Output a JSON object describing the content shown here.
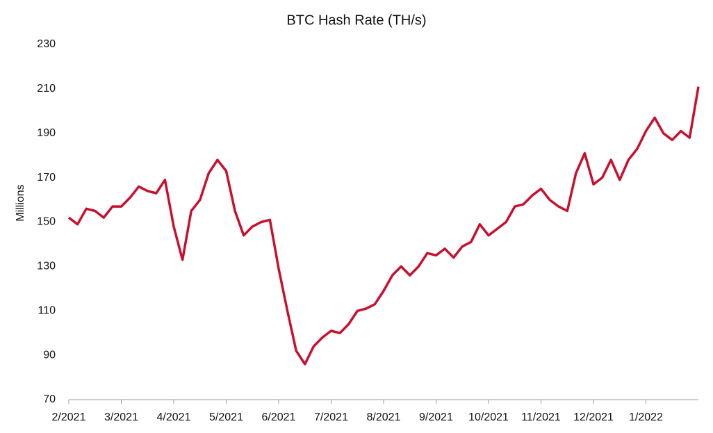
{
  "chart_data": {
    "type": "line",
    "title": "BTC Hash Rate (TH/s)",
    "y_label": "Millions",
    "categories": [
      "2/2021",
      null,
      null,
      null,
      null,
      null,
      "3/2021",
      null,
      null,
      null,
      null,
      null,
      "4/2021",
      null,
      null,
      null,
      null,
      null,
      "5/2021",
      null,
      null,
      null,
      null,
      null,
      "6/2021",
      null,
      null,
      null,
      null,
      null,
      "7/2021",
      null,
      null,
      null,
      null,
      null,
      "8/2021",
      null,
      null,
      null,
      null,
      null,
      "9/2021",
      null,
      null,
      null,
      null,
      null,
      "10/2021",
      null,
      null,
      null,
      null,
      null,
      "11/2021",
      null,
      null,
      null,
      null,
      null,
      "12/2021",
      null,
      null,
      null,
      null,
      null,
      "1/2022",
      null,
      null,
      null,
      null,
      null,
      null
    ],
    "series": [
      {
        "name": "BTC Hash Rate",
        "color": "#c8102e",
        "values": [
          152,
          149,
          156,
          155,
          152,
          157,
          157,
          161,
          166,
          164,
          163,
          169,
          148,
          133,
          155,
          160,
          172,
          178,
          173,
          155,
          144,
          148,
          150,
          151,
          129,
          110,
          92,
          86,
          94,
          98,
          101,
          100,
          104,
          110,
          111,
          113,
          119,
          126,
          130,
          126,
          130,
          136,
          135,
          138,
          134,
          139,
          141,
          149,
          144,
          147,
          150,
          157,
          158,
          162,
          165,
          160,
          157,
          155,
          172,
          181,
          167,
          170,
          178,
          169,
          178,
          183,
          191,
          197,
          190,
          187,
          191,
          188,
          211
        ]
      }
    ],
    "ylim": [
      70,
      230
    ],
    "yticks": [
      70,
      90,
      110,
      130,
      150,
      170,
      190,
      210,
      230
    ],
    "grid": false
  }
}
